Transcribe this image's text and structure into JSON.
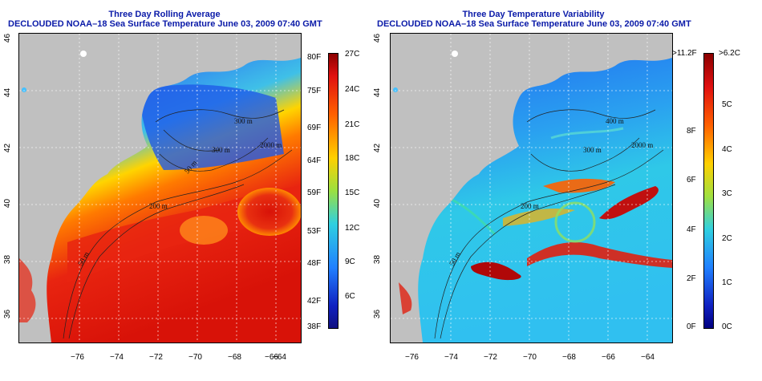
{
  "left_map": {
    "title_line1": "Three Day Rolling Average",
    "title_line2": "DECLOUDED NOAA–18 Sea Surface Temperature June 03, 2009 07:40 GMT",
    "x_ticks": [
      "−76",
      "−74",
      "−72",
      "−70",
      "−68",
      "−66",
      "−64"
    ],
    "y_ticks": [
      "36",
      "38",
      "40",
      "42",
      "44",
      "46"
    ],
    "contour_labels": [
      "50 m",
      "200 m",
      "2000 m",
      "300 m",
      "50 m",
      "300 m"
    ],
    "colorbar": {
      "fahrenheit": [
        "80F",
        "75F",
        "69F",
        "64F",
        "59F",
        "53F",
        "48F",
        "42F",
        "38F"
      ],
      "celsius": [
        "27C",
        "24C",
        "21C",
        "18C",
        "15C",
        "12C",
        "9C",
        "6C"
      ]
    }
  },
  "right_map": {
    "title_line1": "Three Day Temperature Variability",
    "title_line2": "DECLOUDED NOAA–18 Sea Surface Temperature June 03, 2009 07:40 GMT",
    "x_ticks": [
      "−76",
      "−74",
      "−72",
      "−70",
      "−68",
      "−66",
      "−64"
    ],
    "y_ticks": [
      "36",
      "38",
      "40",
      "42",
      "44",
      "46"
    ],
    "contour_labels": [
      "50 m",
      "200 m",
      "2000 m",
      "300 m",
      "400 m"
    ],
    "colorbar": {
      "fahrenheit": ">11.2F",
      "fahrenheit_ticks": [
        "8F",
        "6F",
        "4F",
        "2F",
        "0F"
      ],
      "celsius": [
        ">6.2C",
        "5C",
        "4C",
        "3C",
        "2C",
        "1C",
        "0C"
      ]
    }
  },
  "colors": {
    "title": "#0a1aa8",
    "land": "#c0c0c0"
  }
}
